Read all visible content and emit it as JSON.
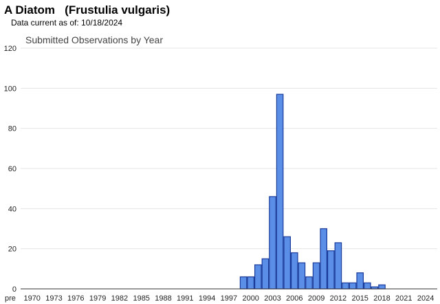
{
  "header": {
    "title": "A Diatom   (Frustulia vulgaris)",
    "data_current": "Data current as of: 10/18/2024"
  },
  "colors": {
    "bar_fill": "#5b8ee6",
    "bar_stroke": "#1a3a9a",
    "grid": "#e4e4e4",
    "axis": "#333333"
  },
  "chart_data": {
    "type": "bar",
    "title": "Submitted Observations by Year",
    "xlabel": "",
    "ylabel": "",
    "ylim": [
      0,
      120
    ],
    "yticks": [
      0,
      20,
      40,
      60,
      80,
      100,
      120
    ],
    "grid": true,
    "legend": "none",
    "categories": [
      "pre",
      "1970",
      "1971",
      "1972",
      "1973",
      "1974",
      "1975",
      "1976",
      "1977",
      "1978",
      "1979",
      "1980",
      "1981",
      "1982",
      "1983",
      "1984",
      "1985",
      "1986",
      "1987",
      "1988",
      "1989",
      "1990",
      "1991",
      "1992",
      "1993",
      "1994",
      "1995",
      "1996",
      "1997",
      "1998",
      "1999",
      "2000",
      "2001",
      "2002",
      "2003",
      "2004",
      "2005",
      "2006",
      "2007",
      "2008",
      "2009",
      "2010",
      "2011",
      "2012",
      "2013",
      "2014",
      "2015",
      "2016",
      "2017",
      "2018",
      "2019",
      "2020",
      "2021",
      "2022",
      "2023",
      "2024"
    ],
    "values": [
      0,
      0,
      0,
      0,
      0,
      0,
      0,
      0,
      0,
      0,
      0,
      0,
      0,
      0,
      0,
      0,
      0,
      0,
      0,
      0,
      0,
      0,
      0,
      0,
      0,
      0,
      0,
      0,
      0,
      0,
      6,
      6,
      12,
      15,
      46,
      97,
      26,
      18,
      13,
      6,
      13,
      30,
      19,
      23,
      3,
      3,
      8,
      3,
      1,
      2,
      0,
      0,
      0,
      0,
      0,
      0
    ],
    "tick_labels": [
      "pre",
      "1970",
      "1973",
      "1976",
      "1979",
      "1982",
      "1985",
      "1988",
      "1991",
      "1994",
      "1997",
      "2000",
      "2003",
      "2006",
      "2009",
      "2012",
      "2015",
      "2018",
      "2021",
      "2024"
    ]
  }
}
